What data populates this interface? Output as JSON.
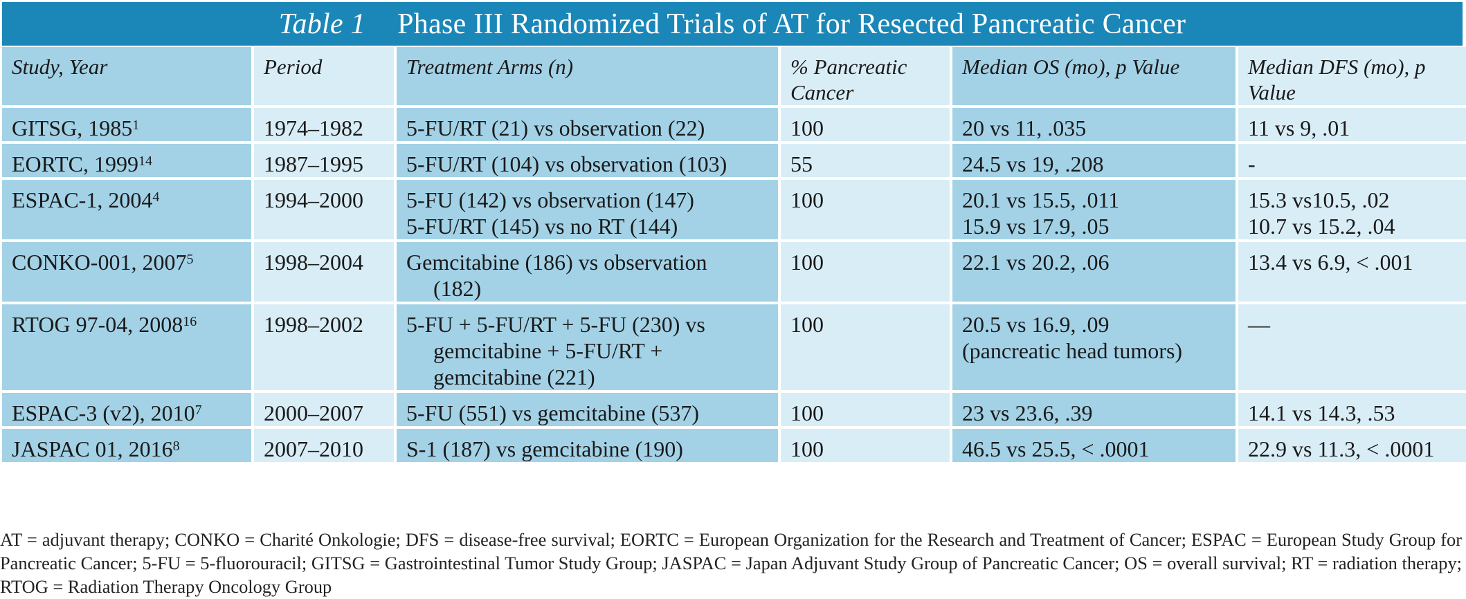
{
  "title": {
    "label": "Table 1",
    "text": "Phase III Randomized Trials of AT for Resected Pancreatic Cancer"
  },
  "columns": [
    "Study, Year",
    "Period",
    "Treatment Arms (n)",
    "% Pancreatic Cancer",
    "Median OS (mo), p Value",
    "Median DFS (mo), p Value"
  ],
  "rows": [
    {
      "study": "GITSG, 1985",
      "ref": "1",
      "period": "1974–1982",
      "arms": [
        "5-FU/RT (21) vs observation (22)"
      ],
      "pct": "100",
      "os": [
        "20 vs 11, .035"
      ],
      "dfs": [
        "11 vs 9, .01"
      ]
    },
    {
      "study": "EORTC, 1999",
      "ref": "14",
      "period": "1987–1995",
      "arms": [
        "5-FU/RT (104) vs observation (103)"
      ],
      "pct": "55",
      "os": [
        "24.5 vs 19, .208"
      ],
      "dfs": [
        "-"
      ]
    },
    {
      "study": "ESPAC-1, 2004",
      "ref": "4",
      "period": "1994–2000",
      "arms": [
        "5-FU (142) vs observation (147)",
        "5-FU/RT (145) vs no RT (144)"
      ],
      "pct": "100",
      "os": [
        "20.1 vs 15.5, .011",
        "15.9 vs 17.9, .05"
      ],
      "dfs": [
        "15.3 vs10.5, .02",
        "10.7 vs 15.2, .04"
      ]
    },
    {
      "study": "CONKO-001, 2007",
      "ref": "5",
      "period": "1998–2004",
      "arms": [
        "Gemcitabine (186) vs observation",
        "(182)"
      ],
      "pct": "100",
      "os": [
        "22.1 vs 20.2, .06"
      ],
      "dfs": [
        "13.4 vs 6.9, < .001"
      ]
    },
    {
      "study": "RTOG 97-04, 2008",
      "ref": "16",
      "period": "1998–2002",
      "arms": [
        "5-FU + 5-FU/RT + 5-FU (230) vs",
        "gemcitabine + 5-FU/RT +",
        "gemcitabine (221)"
      ],
      "pct": "100",
      "os": [
        "20.5 vs 16.9, .09",
        "(pancreatic head tumors)"
      ],
      "dfs": [
        "—"
      ]
    },
    {
      "study": "ESPAC-3 (v2), 2010",
      "ref": "7",
      "period": "2000–2007",
      "arms": [
        "5-FU (551) vs gemcitabine (537)"
      ],
      "pct": "100",
      "os": [
        "23 vs 23.6, .39"
      ],
      "dfs": [
        "14.1 vs 14.3, .53"
      ]
    },
    {
      "study": "JASPAC 01, 2016",
      "ref": "8",
      "period": "2007–2010",
      "arms": [
        "S-1 (187) vs gemcitabine (190)"
      ],
      "pct": "100",
      "os": [
        "46.5 vs 25.5, < .0001"
      ],
      "dfs": [
        "22.9 vs 11.3, < .0001"
      ]
    }
  ],
  "footnote": "AT = adjuvant therapy; CONKO = Charité Onkologie; DFS = disease-free survival; EORTC = European Organization for the Research and Treatment of Cancer; ESPAC = European Study Group for Pancreatic Cancer; 5-FU = 5-fluorouracil; GITSG = Gastrointestinal Tumor Study Group; JASPAC = Japan Adjuvant Study Group of Pancreatic Cancer; OS = overall survival; RT = radiation therapy; RTOG = Radiation Therapy Oncology Group",
  "colors": {
    "title_bg": "#1a87b8",
    "cell_dark": "#a3d2e7",
    "cell_light": "#d9edf6"
  }
}
